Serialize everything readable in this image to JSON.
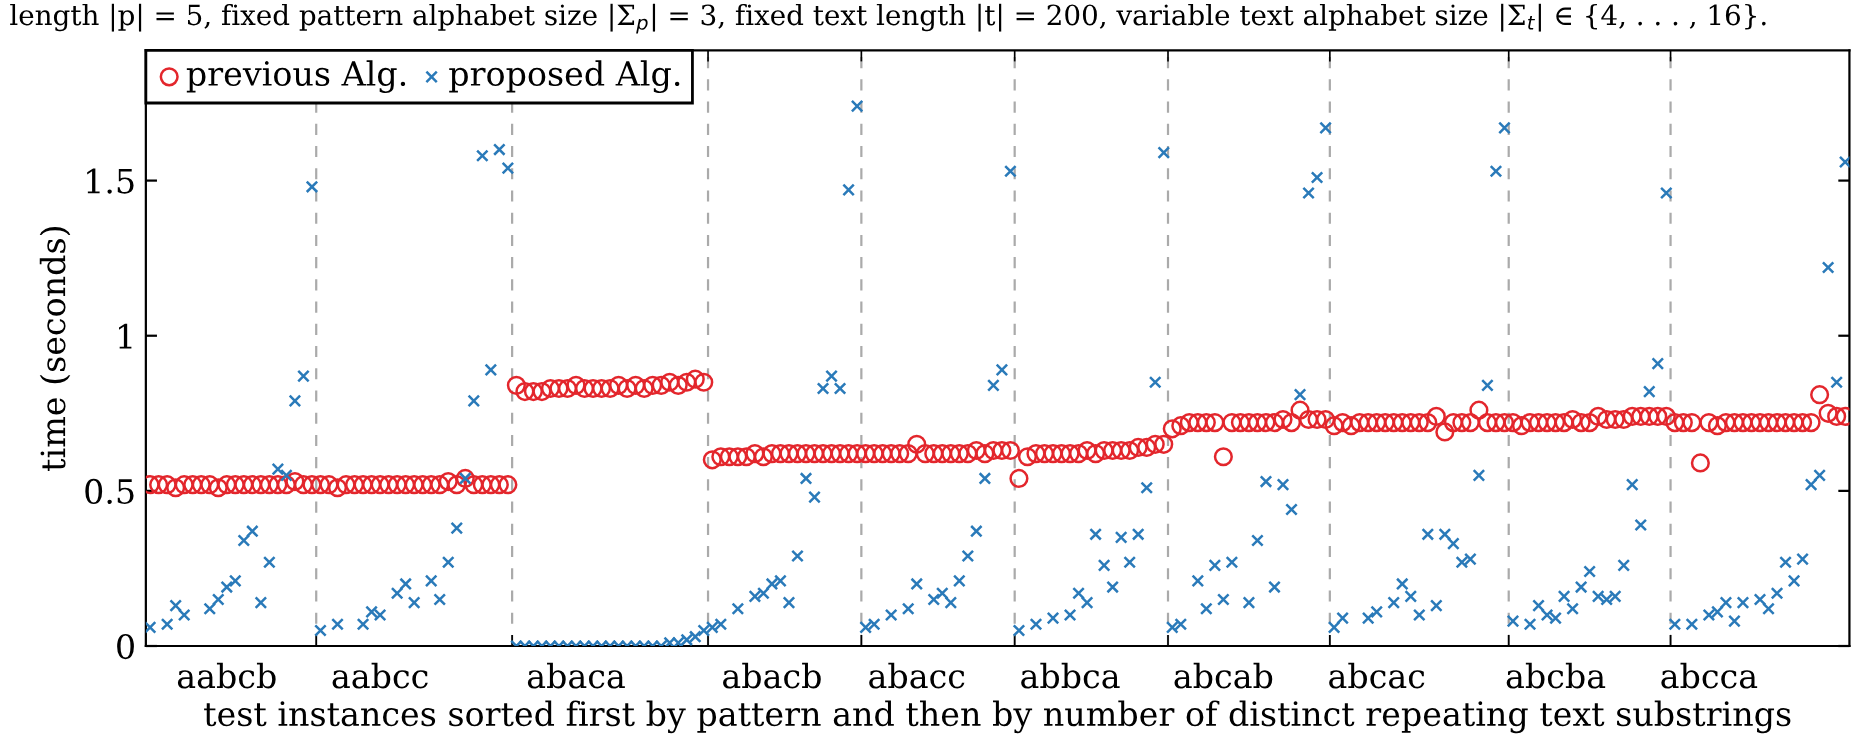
{
  "chart_data": {
    "type": "scatter",
    "annotations": [
      "length |p| = 5, fixed pattern alphabet size |Σ$_{p}$| = 3, fixed text length |t| = 200, variable text alphabet size |Σ$_{t}$| ∈ {4, . . . , 16}."
    ],
    "xlabel": "test instances sorted first by pattern and then by number of distinct repeating text substrings",
    "ylabel": "time (seconds)",
    "categories": [
      null,
      null,
      null,
      null,
      null,
      null,
      null,
      null,
      null,
      "aabcb",
      null,
      null,
      null,
      null,
      null,
      null,
      null,
      null,
      null,
      null,
      null,
      null,
      null,
      null,
      null,
      null,
      null,
      "aabcc",
      null,
      null,
      null,
      null,
      null,
      null,
      null,
      null,
      null,
      null,
      null,
      null,
      null,
      null,
      null,
      null,
      null,
      null,
      null,
      null,
      null,
      null,
      "abaca",
      null,
      null,
      null,
      null,
      null,
      null,
      null,
      null,
      null,
      null,
      null,
      null,
      null,
      null,
      null,
      null,
      null,
      null,
      null,
      null,
      null,
      null,
      "abacb",
      null,
      null,
      null,
      null,
      null,
      null,
      null,
      null,
      null,
      null,
      null,
      null,
      null,
      null,
      null,
      null,
      "abacc",
      null,
      null,
      null,
      null,
      null,
      null,
      null,
      null,
      null,
      null,
      null,
      null,
      null,
      null,
      null,
      null,
      null,
      "abbca",
      null,
      null,
      null,
      null,
      null,
      null,
      null,
      null,
      null,
      null,
      null,
      null,
      null,
      null,
      null,
      null,
      null,
      "abcab",
      null,
      null,
      null,
      null,
      null,
      null,
      null,
      null,
      null,
      null,
      null,
      null,
      null,
      null,
      null,
      null,
      null,
      "abcac",
      null,
      null,
      null,
      null,
      null,
      null,
      null,
      null,
      null,
      null,
      null,
      null,
      null,
      null,
      null,
      null,
      null,
      null,
      null,
      null,
      "abcba",
      null,
      null,
      null,
      null,
      null,
      null,
      null,
      null,
      null,
      null,
      null,
      null,
      null,
      null,
      null,
      null,
      null,
      "abcca",
      null,
      null,
      null,
      null,
      null,
      null,
      null,
      null,
      null,
      null,
      null,
      null,
      null,
      null,
      null,
      null
    ],
    "ylim": [
      0,
      1.92
    ],
    "yticks": [
      0,
      0.5,
      1,
      1.5
    ],
    "legend": "top left",
    "series": [
      {
        "name": "previous Alg.",
        "color": "#e3262c",
        "marker": "circle",
        "values": [
          0.52,
          0.52,
          0.52,
          0.51,
          0.52,
          0.52,
          0.52,
          0.52,
          0.51,
          0.52,
          0.52,
          0.52,
          0.52,
          0.52,
          0.52,
          0.52,
          0.52,
          0.53,
          0.52,
          0.52,
          0.52,
          0.52,
          0.51,
          0.52,
          0.52,
          0.52,
          0.52,
          0.52,
          0.52,
          0.52,
          0.52,
          0.52,
          0.52,
          0.52,
          0.52,
          0.53,
          0.52,
          0.54,
          0.52,
          0.52,
          0.52,
          0.52,
          0.52,
          0.84,
          0.82,
          0.82,
          0.82,
          0.83,
          0.83,
          0.83,
          0.84,
          0.83,
          0.83,
          0.83,
          0.83,
          0.84,
          0.83,
          0.84,
          0.83,
          0.84,
          0.84,
          0.85,
          0.84,
          0.85,
          0.86,
          0.85,
          0.6,
          0.61,
          0.61,
          0.61,
          0.61,
          0.62,
          0.61,
          0.62,
          0.62,
          0.62,
          0.62,
          0.62,
          0.62,
          0.62,
          0.62,
          0.62,
          0.62,
          0.62,
          0.62,
          0.62,
          0.62,
          0.62,
          0.62,
          0.62,
          0.65,
          0.62,
          0.62,
          0.62,
          0.62,
          0.62,
          0.62,
          0.63,
          0.62,
          0.63,
          0.63,
          0.63,
          0.54,
          0.61,
          0.62,
          0.62,
          0.62,
          0.62,
          0.62,
          0.62,
          0.63,
          0.62,
          0.63,
          0.63,
          0.63,
          0.63,
          0.64,
          0.64,
          0.65,
          0.65,
          0.7,
          0.71,
          0.72,
          0.72,
          0.72,
          0.72,
          0.61,
          0.72,
          0.72,
          0.72,
          0.72,
          0.72,
          0.72,
          0.73,
          0.72,
          0.76,
          0.73,
          0.73,
          0.73,
          0.71,
          0.72,
          0.71,
          0.72,
          0.72,
          0.72,
          0.72,
          0.72,
          0.72,
          0.72,
          0.72,
          0.72,
          0.74,
          0.69,
          0.72,
          0.72,
          0.72,
          0.76,
          0.72,
          0.72,
          0.72,
          0.72,
          0.71,
          0.72,
          0.72,
          0.72,
          0.72,
          0.72,
          0.73,
          0.72,
          0.72,
          0.74,
          0.73,
          0.73,
          0.73,
          0.74,
          0.74,
          0.74,
          0.74,
          0.74,
          0.72,
          0.72,
          0.72,
          0.59,
          0.72,
          0.71,
          0.72,
          0.72,
          0.72,
          0.72,
          0.72,
          0.72,
          0.72,
          0.72,
          0.72,
          0.72,
          0.72,
          0.81,
          0.75,
          0.74,
          0.74
        ]
      },
      {
        "name": "proposed Alg.",
        "color": "#2a7ab9",
        "marker": "cross",
        "values": [
          0.06,
          null,
          0.07,
          0.13,
          0.1,
          null,
          null,
          0.12,
          0.15,
          0.19,
          0.21,
          0.34,
          0.37,
          0.14,
          0.27,
          0.57,
          0.55,
          0.79,
          0.87,
          1.48,
          0.05,
          null,
          0.07,
          null,
          null,
          0.07,
          0.11,
          0.1,
          null,
          0.17,
          0.2,
          0.14,
          null,
          0.21,
          0.15,
          0.27,
          0.38,
          0.54,
          0.79,
          1.58,
          0.89,
          1.6,
          1.54,
          0,
          0,
          0,
          0,
          0,
          0,
          0,
          0,
          0,
          0,
          0,
          0,
          0,
          0,
          0,
          0,
          0,
          0,
          0.01,
          0.01,
          0.02,
          0.03,
          0.05,
          0.06,
          0.07,
          null,
          0.12,
          null,
          0.16,
          0.17,
          0.2,
          0.21,
          0.14,
          0.29,
          0.54,
          0.48,
          0.83,
          0.87,
          0.83,
          1.47,
          1.74,
          0.06,
          0.07,
          null,
          0.1,
          null,
          0.12,
          0.2,
          null,
          0.15,
          0.17,
          0.14,
          0.21,
          0.29,
          0.37,
          0.54,
          0.84,
          0.89,
          1.53,
          0.05,
          null,
          0.07,
          null,
          0.09,
          null,
          0.1,
          0.17,
          0.14,
          0.36,
          0.26,
          0.19,
          0.35,
          0.27,
          0.36,
          0.51,
          0.85,
          1.59,
          0.06,
          0.07,
          null,
          0.21,
          0.12,
          0.26,
          0.15,
          0.27,
          null,
          0.14,
          0.34,
          0.53,
          0.19,
          0.52,
          0.44,
          0.81,
          1.46,
          1.51,
          1.67,
          0.06,
          0.09,
          null,
          null,
          0.09,
          0.11,
          null,
          0.14,
          0.2,
          0.16,
          0.1,
          0.36,
          0.13,
          0.36,
          0.33,
          0.27,
          0.28,
          0.55,
          0.84,
          1.53,
          1.67,
          0.08,
          null,
          0.07,
          0.13,
          0.1,
          0.09,
          0.16,
          0.12,
          0.19,
          0.24,
          0.16,
          0.15,
          0.16,
          0.26,
          0.52,
          0.39,
          0.82,
          0.91,
          1.46,
          0.07,
          null,
          0.07,
          null,
          0.1,
          0.11,
          0.14,
          0.08,
          0.14,
          null,
          0.15,
          0.12,
          0.17,
          0.27,
          0.21,
          0.28,
          0.52,
          0.55,
          1.22,
          0.85,
          1.56
        ]
      }
    ]
  }
}
